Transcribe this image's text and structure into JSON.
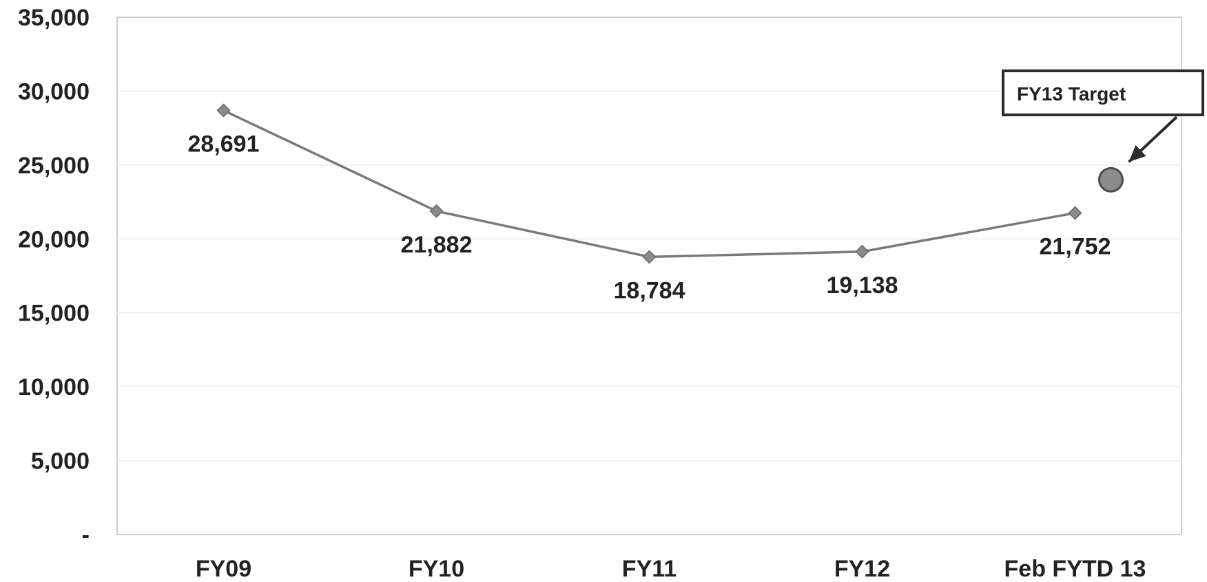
{
  "chart_data": {
    "type": "line",
    "categories": [
      "FY09",
      "FY10",
      "FY11",
      "FY12",
      "Feb FYTD 13"
    ],
    "series": [
      {
        "values": [
          28691,
          21882,
          18784,
          19138,
          21752
        ],
        "data_labels": [
          "28,691",
          "21,882",
          "18,784",
          "19,138",
          "21,752"
        ],
        "color": "#7a7a7a",
        "marker": "diamond"
      }
    ],
    "target": {
      "value": 24000,
      "label": "FY13 Target",
      "color": "#8c8c8c"
    },
    "y_ticks": [
      0,
      5000,
      10000,
      15000,
      20000,
      25000,
      30000,
      35000
    ],
    "y_tick_labels": [
      "-",
      "5,000",
      "10,000",
      "15,000",
      "20,000",
      "25,000",
      "30,000",
      "35,000"
    ],
    "ylim": [
      0,
      35000
    ],
    "title": "",
    "xlabel": "",
    "ylabel": "",
    "grid": true,
    "legend": "none"
  }
}
